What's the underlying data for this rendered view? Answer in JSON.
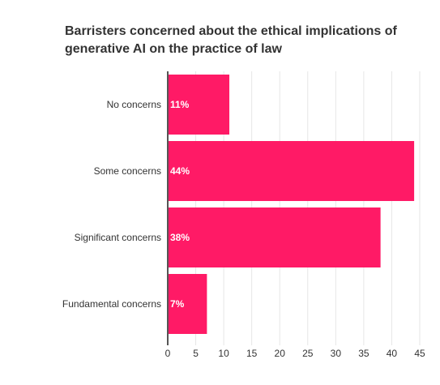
{
  "chart_data": {
    "type": "bar",
    "orientation": "horizontal",
    "title": "Barristers concerned about the ethical implications of generative AI on the practice of law",
    "categories": [
      "No concerns",
      "Some concerns",
      "Significant concerns",
      "Fundamental concerns"
    ],
    "values": [
      11,
      44,
      38,
      7
    ],
    "data_labels": [
      "11%",
      "44%",
      "38%",
      "7%"
    ],
    "xlabel": "",
    "ylabel": "",
    "xlim": [
      0,
      45
    ],
    "x_ticks": [
      0,
      5,
      10,
      15,
      20,
      25,
      30,
      35,
      40,
      45
    ],
    "grid": true,
    "legend": "none",
    "bar_color": "#ff1a66"
  }
}
